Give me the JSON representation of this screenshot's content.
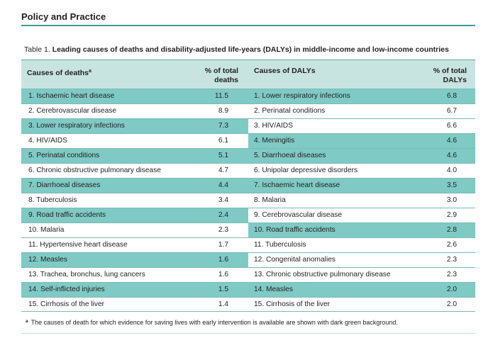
{
  "section_header": "Policy and Practice",
  "caption": {
    "label": "Table 1.",
    "title": "Leading causes of deaths and disability-adjusted life-years (DALYs) in middle-income and low-income countries"
  },
  "columns": {
    "causes_of_deaths": "Causes of deaths",
    "causes_of_deaths_sup": "a",
    "pct_deaths_line1": "% of total",
    "pct_deaths_line2": "deaths",
    "causes_of_dalys": "Causes of DALYs",
    "pct_dalys_line1": "% of total",
    "pct_dalys_line2": "DALYs"
  },
  "colors": {
    "dark_green": "#7fcac5",
    "header_bg": "#c8e4e1",
    "rule": "#3a9f96"
  },
  "rows": [
    {
      "death": "1. Ischaemic heart disease",
      "death_pct": "11.5",
      "death_hl": true,
      "daly": "1. Lower respiratory infections",
      "daly_pct": "6.8",
      "daly_hl": true
    },
    {
      "death": "2. Cerebrovascular disease",
      "death_pct": "8.9",
      "death_hl": false,
      "daly": "2. Perinatal conditions",
      "daly_pct": "6.7",
      "daly_hl": false
    },
    {
      "death": "3. Lower respiratory infections",
      "death_pct": "7.3",
      "death_hl": true,
      "daly": "3. HIV/AIDS",
      "daly_pct": "6.6",
      "daly_hl": false
    },
    {
      "death": "4. HIV/AIDS",
      "death_pct": "6.1",
      "death_hl": false,
      "daly": "4. Meningitis",
      "daly_pct": "4.6",
      "daly_hl": true
    },
    {
      "death": "5. Perinatal conditions",
      "death_pct": "5.1",
      "death_hl": true,
      "daly": "5. Diarrhoeal diseases",
      "daly_pct": "4.6",
      "daly_hl": true
    },
    {
      "death": "6. Chronic obstructive pulmonary disease",
      "death_pct": "4.7",
      "death_hl": false,
      "daly": "6. Unipolar depressive disorders",
      "daly_pct": "4.0",
      "daly_hl": false
    },
    {
      "death": "7. Diarrhoeal diseases",
      "death_pct": "4.4",
      "death_hl": true,
      "daly": "7. Ischaemic heart disease",
      "daly_pct": "3.5",
      "daly_hl": true
    },
    {
      "death": "8. Tuberculosis",
      "death_pct": "3.4",
      "death_hl": false,
      "daly": "8. Malaria",
      "daly_pct": "3.0",
      "daly_hl": false
    },
    {
      "death": "9. Road traffic accidents",
      "death_pct": "2.4",
      "death_hl": true,
      "daly": "9. Cerebrovascular disease",
      "daly_pct": "2.9",
      "daly_hl": false
    },
    {
      "death": "10. Malaria",
      "death_pct": "2.3",
      "death_hl": false,
      "daly": "10. Road traffic accidents",
      "daly_pct": "2.8",
      "daly_hl": true
    },
    {
      "death": "11. Hypertensive heart disease",
      "death_pct": "1.7",
      "death_hl": false,
      "daly": "11. Tuberculosis",
      "daly_pct": "2.6",
      "daly_hl": false
    },
    {
      "death": "12. Measles",
      "death_pct": "1.6",
      "death_hl": true,
      "daly": "12. Congenital anomalies",
      "daly_pct": "2.3",
      "daly_hl": false
    },
    {
      "death": "13. Trachea, bronchus, lung cancers",
      "death_pct": "1.6",
      "death_hl": false,
      "daly": "13. Chronic obstructive pulmonary disease",
      "daly_pct": "2.3",
      "daly_hl": false
    },
    {
      "death": "14. Self-inflicted injuries",
      "death_pct": "1.5",
      "death_hl": true,
      "daly": "14. Measles",
      "daly_pct": "2.0",
      "daly_hl": true
    },
    {
      "death": "15. Cirrhosis of the liver",
      "death_pct": "1.4",
      "death_hl": false,
      "daly": "15. Cirrhosis of the liver",
      "daly_pct": "2.0",
      "daly_hl": false
    }
  ],
  "footnote": {
    "mark": "a",
    "text": "The causes of death for which evidence for saving lives with early intervention is available are shown with dark green background."
  }
}
